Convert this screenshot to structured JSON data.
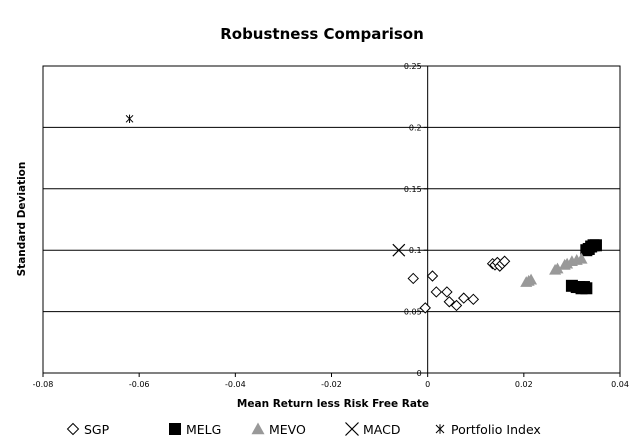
{
  "chart_data": {
    "type": "scatter",
    "title": "Robustness Comparison",
    "xlabel": "Mean Return less Risk Free Rate",
    "ylabel": "Standard Deviation",
    "xlim": [
      -0.08,
      0.04
    ],
    "ylim": [
      0,
      0.25
    ],
    "x_ticks": [
      -0.08,
      -0.06,
      -0.04,
      -0.02,
      0,
      0.02,
      0.04
    ],
    "x_tick_labels": [
      "-0.08",
      "-0.06",
      "-0.04",
      "-0.02",
      "0",
      "0.02",
      "0.04"
    ],
    "y_ticks": [
      0,
      0.05,
      0.1,
      0.15,
      0.2,
      0.25
    ],
    "y_tick_labels": [
      "0",
      "0.05",
      "0.1",
      "0.15",
      "0.2",
      "0.25"
    ],
    "gridlines": "horizontal",
    "legend_position": "bottom",
    "series": [
      {
        "name": "SGP",
        "marker": "diamond-open",
        "color": "#000000",
        "points": [
          [
            -0.003,
            0.077
          ],
          [
            -0.0005,
            0.053
          ],
          [
            0.001,
            0.079
          ],
          [
            0.0018,
            0.066
          ],
          [
            0.004,
            0.066
          ],
          [
            0.0045,
            0.058
          ],
          [
            0.006,
            0.055
          ],
          [
            0.0075,
            0.061
          ],
          [
            0.0095,
            0.06
          ],
          [
            0.0135,
            0.089
          ],
          [
            0.014,
            0.088
          ],
          [
            0.0145,
            0.09
          ],
          [
            0.015,
            0.087
          ],
          [
            0.0155,
            0.089
          ],
          [
            0.016,
            0.091
          ]
        ]
      },
      {
        "name": "MELG",
        "marker": "square-filled",
        "color": "#000000",
        "points": [
          [
            0.03,
            0.071
          ],
          [
            0.031,
            0.07
          ],
          [
            0.0315,
            0.07
          ],
          [
            0.032,
            0.069
          ],
          [
            0.0325,
            0.07
          ],
          [
            0.033,
            0.069
          ],
          [
            0.033,
            0.1
          ],
          [
            0.0335,
            0.101
          ],
          [
            0.034,
            0.103
          ],
          [
            0.0345,
            0.104
          ],
          [
            0.035,
            0.104
          ]
        ]
      },
      {
        "name": "MEVO",
        "marker": "triangle-filled",
        "color": "#999999",
        "points": [
          [
            0.0205,
            0.074
          ],
          [
            0.021,
            0.075
          ],
          [
            0.0215,
            0.076
          ],
          [
            0.0265,
            0.084
          ],
          [
            0.027,
            0.085
          ],
          [
            0.0285,
            0.088
          ],
          [
            0.029,
            0.089
          ],
          [
            0.03,
            0.091
          ],
          [
            0.031,
            0.092
          ],
          [
            0.032,
            0.093
          ]
        ]
      },
      {
        "name": "MACD",
        "marker": "x",
        "color": "#000000",
        "points": [
          [
            -0.006,
            0.1
          ]
        ]
      },
      {
        "name": "Portfolio Index",
        "marker": "asterisk",
        "color": "#000000",
        "points": [
          [
            -0.062,
            0.207
          ]
        ]
      }
    ]
  }
}
